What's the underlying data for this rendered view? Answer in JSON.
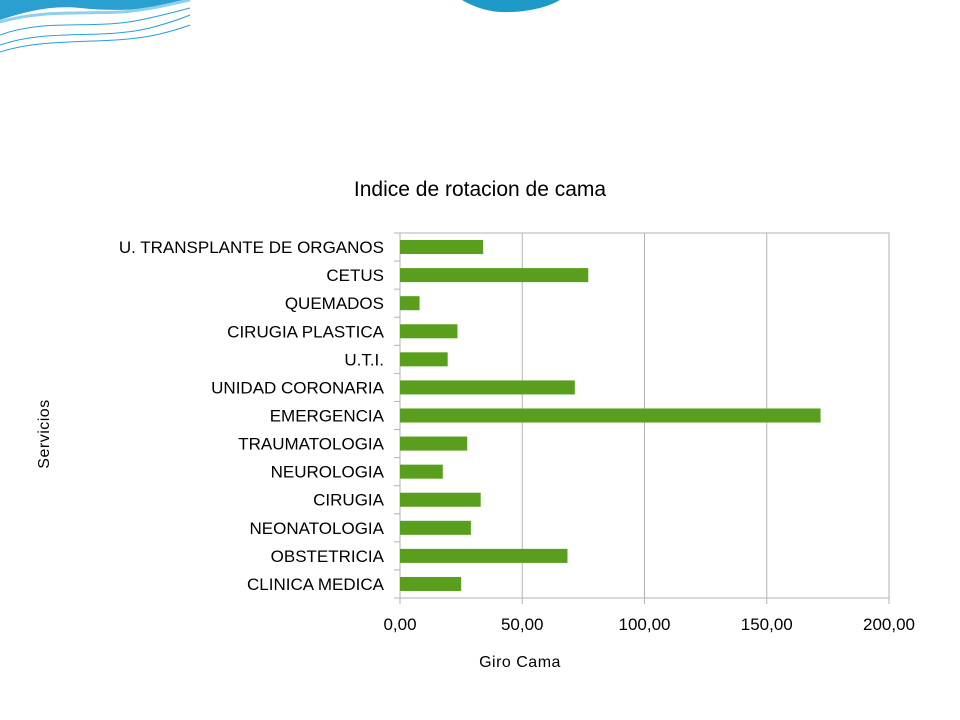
{
  "chart_data": {
    "type": "bar",
    "orientation": "horizontal",
    "title": "Indice de rotacion de cama",
    "xlabel": "Giro Cama",
    "ylabel": "Servicios",
    "categories": [
      "U. TRANSPLANTE DE ORGANOS",
      "CETUS",
      "QUEMADOS",
      "CIRUGIA PLASTICA",
      "U.T.I.",
      "UNIDAD CORONARIA",
      "EMERGENCIA",
      "TRAUMATOLOGIA",
      "NEUROLOGIA",
      "CIRUGIA",
      "NEONATOLOGIA",
      "OBSTETRICIA",
      "CLINICA MEDICA"
    ],
    "values": [
      34,
      77,
      8,
      23.5,
      19.5,
      71.5,
      172,
      27.5,
      17.5,
      33,
      29,
      68.5,
      25
    ],
    "xlim": [
      0,
      200
    ],
    "xticks": [
      "0,00",
      "50,00",
      "100,00",
      "150,00",
      "200,00"
    ],
    "xtick_values": [
      0,
      50,
      100,
      150,
      200
    ],
    "grid": true,
    "legend": "none",
    "bar_color": "#5a9e1e",
    "grid_color": "#b3b3b3"
  }
}
